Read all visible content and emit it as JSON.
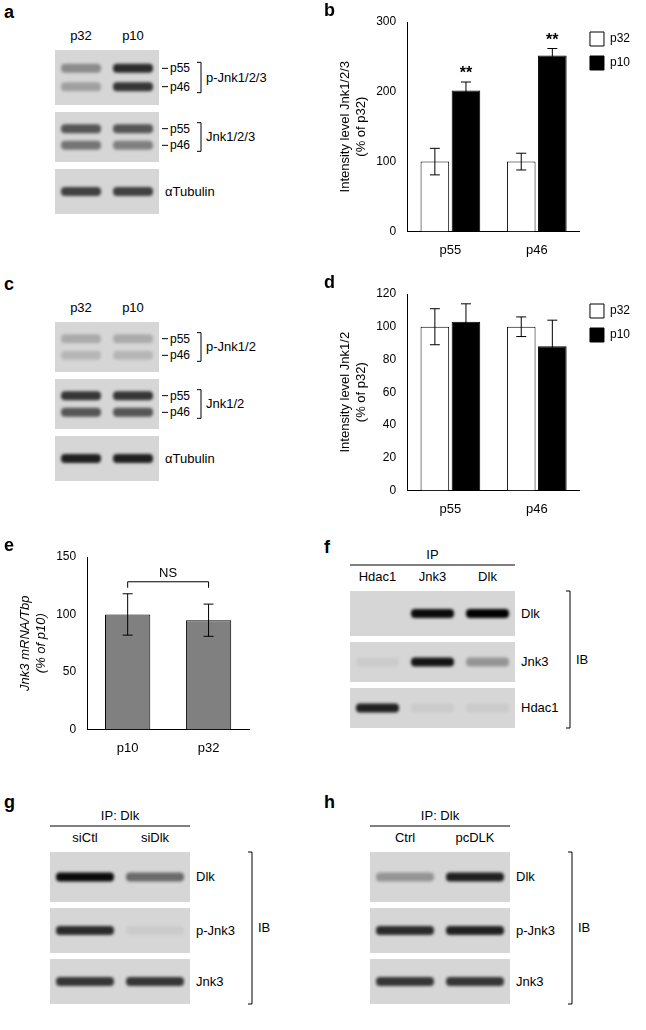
{
  "chart_data": [
    {
      "panel": "b",
      "type": "bar",
      "y_label": [
        "Intensity level Jnk1/2/3",
        "(% of p32)"
      ],
      "categories": [
        "p55",
        "p46"
      ],
      "series": [
        {
          "name": "p32",
          "color": "#ffffff",
          "values": [
            100,
            100
          ],
          "errors": [
            19,
            12
          ]
        },
        {
          "name": "p10",
          "color": "#000000",
          "values": [
            202,
            252
          ],
          "errors": [
            12,
            10
          ]
        }
      ],
      "ylim": [
        0,
        300
      ],
      "yticks": [
        0,
        100,
        200,
        300
      ],
      "grid": false,
      "legend": "upper right",
      "annotations": [
        {
          "text": "**",
          "series": "p10",
          "category": "p55"
        },
        {
          "text": "**",
          "series": "p10",
          "category": "p46"
        }
      ]
    },
    {
      "panel": "d",
      "type": "bar",
      "y_label": [
        "Intensity level Jnk1/2",
        "(% of p32)"
      ],
      "categories": [
        "p55",
        "p46"
      ],
      "series": [
        {
          "name": "p32",
          "color": "#ffffff",
          "values": [
            100,
            100
          ],
          "errors": [
            11,
            6
          ]
        },
        {
          "name": "p10",
          "color": "#000000",
          "values": [
            103,
            88
          ],
          "errors": [
            11,
            16
          ]
        }
      ],
      "ylim": [
        0,
        120
      ],
      "yticks": [
        0,
        20,
        40,
        60,
        80,
        100,
        120
      ],
      "grid": false,
      "legend": "upper right"
    },
    {
      "panel": "e",
      "type": "bar",
      "y_label": [
        "Jnk3 mRNA/Tbp",
        "(% of p10)"
      ],
      "categories": [
        "p10",
        "p32"
      ],
      "values": [
        100,
        95
      ],
      "errors": [
        18,
        14
      ],
      "color": "#808080",
      "ylim": [
        0,
        150
      ],
      "yticks": [
        0,
        50,
        100,
        150
      ],
      "grid": false,
      "annotations": [
        {
          "text": "NS",
          "between": [
            "p10",
            "p32"
          ]
        }
      ]
    }
  ],
  "blots": [
    {
      "panel": "a",
      "lanes": [
        "p32",
        "p10"
      ],
      "rows": [
        {
          "bands": [
            "p55",
            "p46"
          ],
          "label": "p-Jnk1/2/3"
        },
        {
          "bands": [
            "p55",
            "p46"
          ],
          "label": "Jnk1/2/3"
        },
        {
          "label": "αTubulin"
        }
      ]
    },
    {
      "panel": "c",
      "lanes": [
        "p32",
        "p10"
      ],
      "rows": [
        {
          "bands": [
            "p55",
            "p46"
          ],
          "label": "p-Jnk1/2"
        },
        {
          "bands": [
            "p55",
            "p46"
          ],
          "label": "Jnk1/2"
        },
        {
          "label": "αTubulin"
        }
      ]
    },
    {
      "panel": "f",
      "ip": "IP",
      "lanes": [
        "Hdac1",
        "Jnk3",
        "Dlk"
      ],
      "rows": [
        {
          "label": "Dlk"
        },
        {
          "label": "Jnk3"
        },
        {
          "label": "Hdac1"
        }
      ],
      "ib": "IB"
    },
    {
      "panel": "g",
      "ip": "IP: Dlk",
      "lanes": [
        "siCtl",
        "siDlk"
      ],
      "rows": [
        {
          "label": "Dlk"
        },
        {
          "label": "p-Jnk3"
        },
        {
          "label": "Jnk3"
        }
      ],
      "ib": "IB"
    },
    {
      "panel": "h",
      "ip": "IP: Dlk",
      "lanes": [
        "Ctrl",
        "pcDLK"
      ],
      "rows": [
        {
          "label": "Dlk"
        },
        {
          "label": "p-Jnk3"
        },
        {
          "label": "Jnk3"
        }
      ],
      "ib": "IB"
    }
  ]
}
